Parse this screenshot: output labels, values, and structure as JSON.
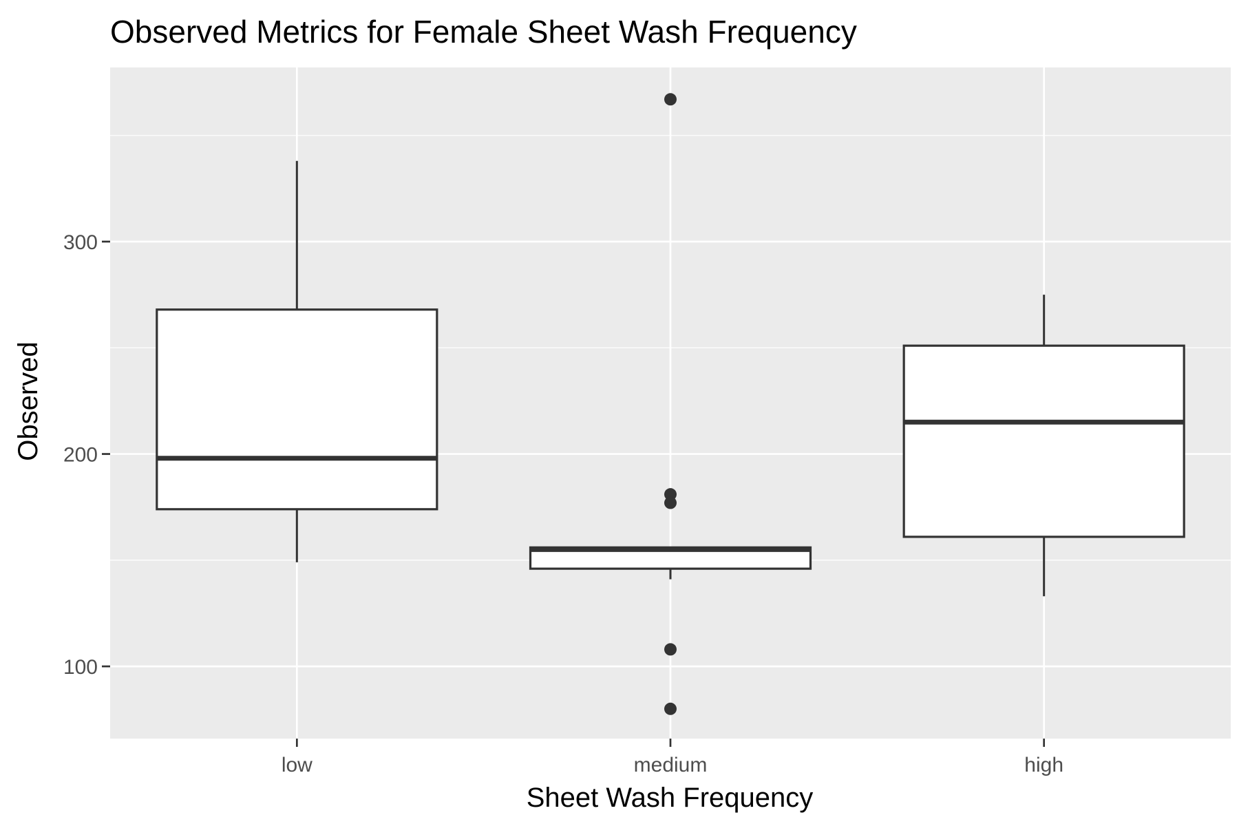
{
  "chart_data": {
    "type": "boxplot",
    "title": "Observed Metrics for Female Sheet Wash Frequency",
    "xlabel": "Sheet Wash Frequency",
    "ylabel": "Observed",
    "categories": [
      "low",
      "medium",
      "high"
    ],
    "ylim": [
      66,
      382
    ],
    "yticks": [
      100,
      200,
      300
    ],
    "grid": true,
    "boxes": [
      {
        "category": "low",
        "whisker_low": 149,
        "q1": 174,
        "median": 198,
        "q3": 268,
        "whisker_high": 338,
        "outliers": []
      },
      {
        "category": "medium",
        "whisker_low": 141,
        "q1": 146,
        "median": 155,
        "q3": 156,
        "whisker_high": 156,
        "outliers": [
          367,
          181,
          177,
          108,
          80
        ]
      },
      {
        "category": "high",
        "whisker_low": 133,
        "q1": 161,
        "median": 215,
        "q3": 251,
        "whisker_high": 275,
        "outliers": []
      }
    ],
    "colors": {
      "panel_background": "#ebebeb",
      "grid": "#ffffff",
      "box_fill": "#ffffff",
      "box_line": "#333333",
      "tick_text": "#4d4d4d",
      "title_text": "#000000"
    }
  }
}
